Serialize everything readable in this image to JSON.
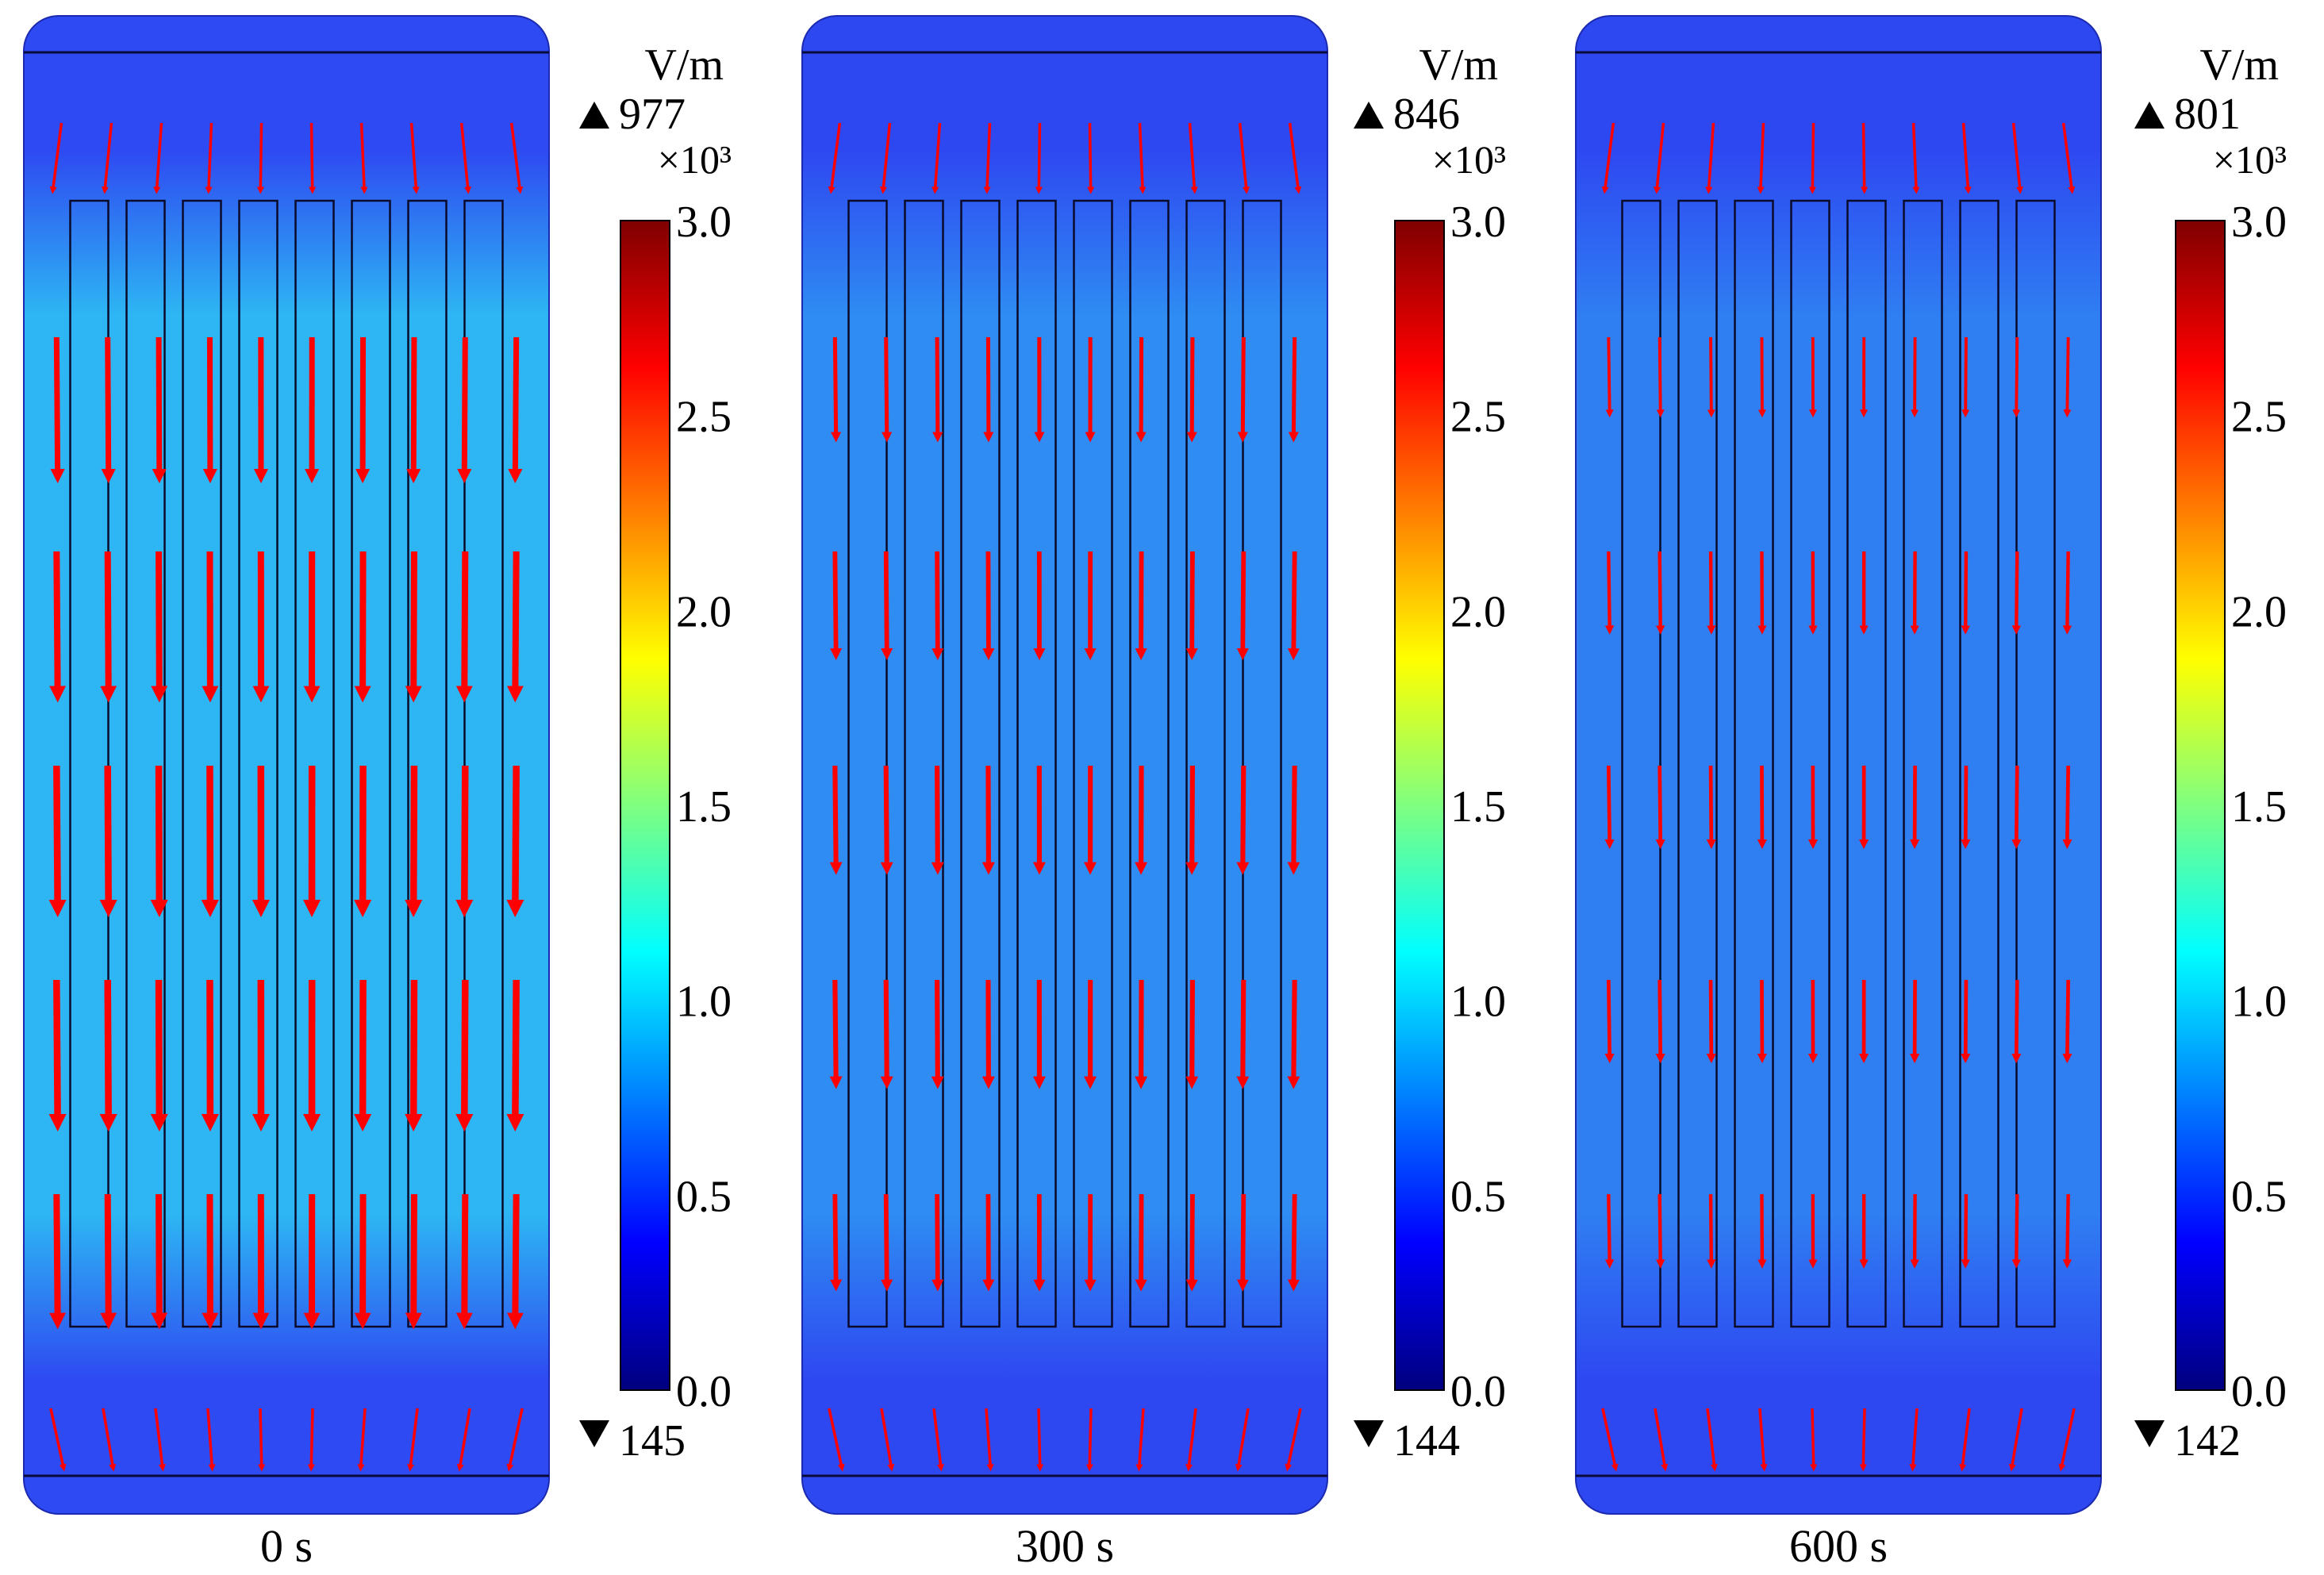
{
  "figure": {
    "quantity": "Electric field norm with field direction arrows",
    "colormap": [
      "#00007f",
      "#0000ff",
      "#007fff",
      "#00ffff",
      "#7fff7f",
      "#ffff00",
      "#ff7f00",
      "#ff0000",
      "#7f0000"
    ],
    "arrow_color": "#ff0000",
    "panels": [
      {
        "time_label": "0 s",
        "unit": "V/m",
        "max_label": "977",
        "min_label": "145",
        "scale_label": "×10³",
        "colorbar_ticks": [
          "3.0",
          "2.5",
          "2.0",
          "1.5",
          "1.0",
          "0.5",
          "0.0"
        ],
        "field_colors": {
          "edge": "#2e4af2",
          "mid": "#2db6f3"
        },
        "arrow_strength": 1.0
      },
      {
        "time_label": "300 s",
        "unit": "V/m",
        "max_label": "846",
        "min_label": "144",
        "scale_label": "×10³",
        "colorbar_ticks": [
          "3.0",
          "2.5",
          "2.0",
          "1.5",
          "1.0",
          "0.5",
          "0.0"
        ],
        "field_colors": {
          "edge": "#2e48f1",
          "mid": "#2e8cf2"
        },
        "arrow_strength": 0.72
      },
      {
        "time_label": "600 s",
        "unit": "V/m",
        "max_label": "801",
        "min_label": "142",
        "scale_label": "×10³",
        "colorbar_ticks": [
          "3.0",
          "2.5",
          "2.0",
          "1.5",
          "1.0",
          "0.5",
          "0.0"
        ],
        "field_colors": {
          "edge": "#2e48f1",
          "mid": "#2f7ef2"
        },
        "arrow_strength": 0.55
      }
    ]
  }
}
